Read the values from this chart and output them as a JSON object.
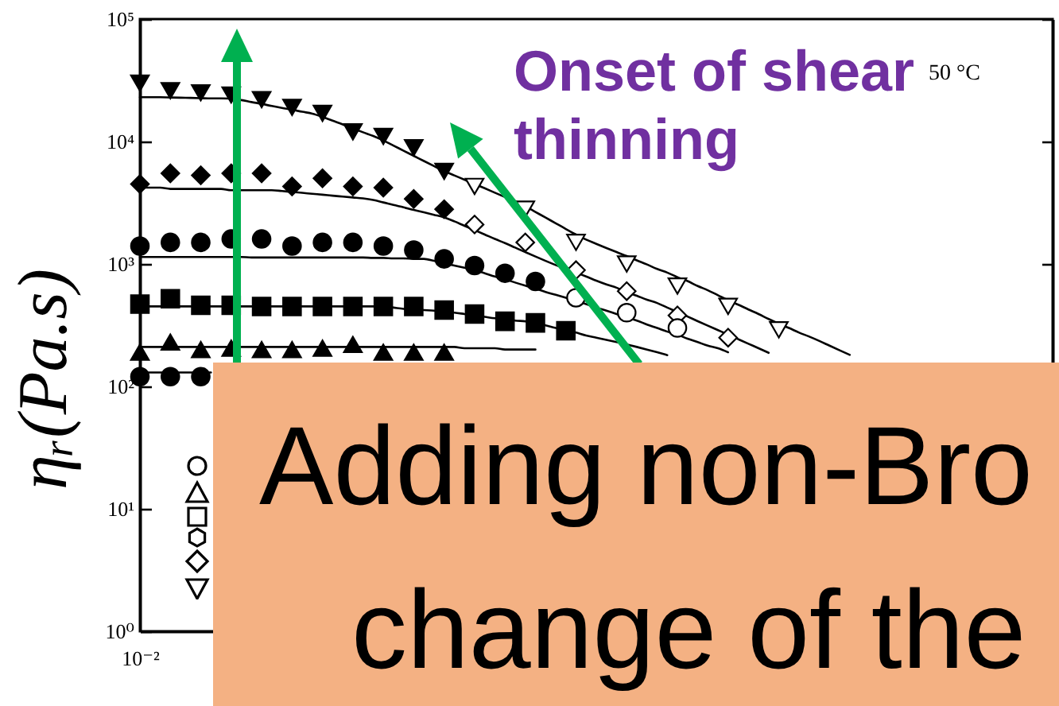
{
  "chart_data": {
    "type": "scatter",
    "ylabel": "ηᵣ(Pa.s)",
    "annotations": [
      "Onset of shear thinning",
      "50 °C",
      "Adding non-Bro",
      "change of the"
    ],
    "categories": [
      "10⁻²",
      null,
      null,
      null,
      null,
      null,
      null,
      null,
      null,
      null,
      null,
      null,
      null,
      null,
      null,
      null,
      null,
      null,
      null,
      null,
      null,
      null,
      null,
      null,
      null,
      null,
      null,
      null,
      null,
      null,
      null,
      null,
      null,
      null,
      null,
      null,
      null,
      null,
      null,
      null,
      null,
      null,
      null,
      null,
      null,
      null,
      null,
      null,
      null,
      null,
      null,
      null,
      null,
      null,
      null,
      null,
      null,
      null,
      null,
      null,
      null,
      null,
      null,
      null,
      null,
      null,
      null,
      null,
      null,
      null,
      null,
      null,
      null,
      null,
      null,
      null,
      null,
      null,
      null,
      null,
      null,
      null,
      null,
      null,
      null,
      null,
      null,
      null,
      null,
      null,
      null
    ],
    "log": "y",
    "ylim": [
      1,
      100000
    ],
    "yticks": [
      {
        "value": 1,
        "label": "10⁰"
      },
      {
        "value": 10,
        "label": "10¹"
      },
      {
        "value": 100,
        "label": "10²"
      },
      {
        "value": 1000,
        "label": "10³"
      },
      {
        "value": 10000,
        "label": "10⁴"
      },
      {
        "value": 100000,
        "label": "10⁵"
      }
    ],
    "line_style": "solid",
    "series": [
      {
        "type": "line",
        "color": "#000000",
        "values": [
          23000,
          23000,
          23000,
          22900,
          22800,
          22700,
          22600,
          22500,
          22500,
          22400,
          21800,
          21000,
          20300,
          19500,
          18800,
          18200,
          17500,
          16900,
          15900,
          14800,
          13800,
          12800,
          11900,
          11100,
          10200,
          9270,
          8410,
          7640,
          6930,
          6300,
          5740,
          5290,
          4880,
          4500,
          4150,
          3820,
          3520,
          3250,
          2960,
          2660,
          2390,
          2150,
          1930,
          1740,
          1580,
          1460,
          1350,
          1250,
          1160,
          1070,
          990,
          910,
          850,
          780,
          725,
          660,
          610,
          555,
          505,
          465,
          425,
          390,
          355,
          325,
          300,
          275,
          255,
          235,
          215,
          197,
          181,
          null,
          null,
          null,
          null,
          null,
          null,
          null,
          null,
          null,
          null,
          null,
          null,
          null,
          null,
          null,
          null,
          null,
          null,
          null,
          null
        ]
      },
      {
        "type": "line",
        "color": "#000000",
        "values": [
          4200,
          4200,
          4200,
          4100,
          4100,
          4100,
          4100,
          4100,
          4100,
          4000,
          4000,
          4000,
          4000,
          4000,
          3940,
          3870,
          3810,
          3740,
          3680,
          3610,
          3550,
          3490,
          3430,
          3330,
          3180,
          3030,
          2900,
          2760,
          2640,
          2520,
          2400,
          2230,
          2050,
          1890,
          1740,
          1600,
          1480,
          1360,
          1250,
          1150,
          1060,
          980,
          910,
          850,
          790,
          730,
          680,
          640,
          590,
          550,
          510,
          480,
          440,
          405,
          372,
          341,
          313,
          288,
          265,
          243,
          223,
          205,
          188,
          null,
          null,
          null,
          null,
          null,
          null,
          null,
          null,
          null,
          null,
          null,
          null,
          null,
          null,
          null,
          null,
          null,
          null,
          null,
          null,
          null,
          null,
          null,
          null,
          null,
          null,
          null,
          null
        ]
      },
      {
        "type": "line",
        "color": "#000000",
        "values": [
          1140,
          1140,
          1140,
          1140,
          1140,
          1140,
          1140,
          1140,
          1140,
          1140,
          1140,
          1130,
          1130,
          1130,
          1130,
          1130,
          1130,
          1130,
          1130,
          1130,
          1130,
          1130,
          1130,
          1120,
          1120,
          1110,
          1110,
          1100,
          1100,
          1060,
          1010,
          970,
          930,
          890,
          840,
          790,
          750,
          705,
          665,
          630,
          590,
          560,
          530,
          500,
          470,
          440,
          415,
          390,
          365,
          345,
          320,
          300,
          280,
          265,
          245,
          230,
          215,
          205,
          190,
          null,
          null,
          null,
          null,
          null,
          null,
          null,
          null,
          null,
          null,
          null,
          null,
          null,
          null,
          null,
          null,
          null,
          null,
          null,
          null,
          null,
          null,
          null,
          null,
          null,
          null,
          null,
          null,
          null,
          null,
          null,
          null
        ]
      },
      {
        "type": "line",
        "color": "#000000",
        "values": [
          450,
          450,
          450,
          450,
          450,
          450,
          450,
          450,
          450,
          450,
          450,
          450,
          450,
          450,
          450,
          450,
          450,
          450,
          450,
          450,
          450,
          450,
          450,
          450,
          450,
          440,
          430,
          425,
          420,
          415,
          405,
          400,
          390,
          380,
          370,
          360,
          355,
          345,
          340,
          330,
          315,
          300,
          290,
          275,
          260,
          250,
          240,
          230,
          220,
          210,
          200,
          190,
          180,
          null,
          null,
          null,
          null,
          null,
          null,
          null,
          null,
          null,
          null,
          null,
          null,
          null,
          null,
          null,
          null,
          null,
          null,
          null,
          null,
          null,
          null,
          null,
          null,
          null,
          null,
          null,
          null,
          null,
          null,
          null,
          null,
          null,
          null,
          null,
          null,
          null,
          null
        ]
      },
      {
        "type": "line",
        "color": "#000000",
        "values": [
          210,
          210,
          210,
          210,
          210,
          210,
          210,
          210,
          210,
          210,
          210,
          210,
          210,
          210,
          210,
          210,
          210,
          210,
          210,
          210,
          210,
          210,
          210,
          210,
          210,
          210,
          210,
          210,
          210,
          210,
          210,
          210,
          205,
          205,
          205,
          205,
          200,
          200,
          200,
          200,
          null,
          null,
          null,
          null,
          null,
          null,
          null,
          null,
          null,
          null,
          null,
          null,
          null,
          null,
          null,
          null,
          null,
          null,
          null,
          null,
          null,
          null,
          null,
          null,
          null,
          null,
          null,
          null,
          null,
          null,
          null,
          null,
          null,
          null,
          null,
          null,
          null,
          null,
          null,
          null,
          null,
          null,
          null,
          null,
          null,
          null,
          null,
          null,
          null,
          null,
          null
        ]
      },
      {
        "type": "line",
        "color": "#000000",
        "values": [
          130,
          130,
          130,
          130,
          130,
          130,
          130,
          130,
          null,
          null,
          null,
          null,
          null,
          null,
          null,
          null,
          null,
          null,
          null,
          null,
          null,
          null,
          null,
          null,
          null,
          null,
          null,
          null,
          null,
          null,
          null,
          null,
          null,
          null,
          null,
          null,
          null,
          null,
          null,
          null,
          null,
          null,
          null,
          null,
          null,
          null,
          null,
          null,
          null,
          null,
          null,
          null,
          null,
          null,
          null,
          null,
          null,
          null,
          null,
          null,
          null,
          null,
          null,
          null,
          null,
          null,
          null,
          null,
          null,
          null,
          null,
          null,
          null,
          null,
          null,
          null,
          null,
          null,
          null,
          null,
          null,
          null,
          null,
          null,
          null,
          null,
          null,
          null,
          null,
          null,
          null
        ]
      },
      {
        "marker": "triangle-down",
        "color": "#000000",
        "values": [
          30000,
          null,
          null,
          26000,
          null,
          null,
          25000,
          null,
          null,
          24000,
          null,
          null,
          22000,
          null,
          null,
          19000,
          null,
          null,
          17000,
          null,
          null,
          12000,
          null,
          null,
          11000,
          null,
          null,
          8900,
          null,
          null,
          5700,
          null,
          null,
          null,
          null,
          null,
          null,
          null,
          null,
          null,
          null,
          null,
          null,
          null,
          null,
          null,
          null,
          null,
          null,
          null,
          null,
          null,
          null,
          null,
          null,
          null,
          null,
          null,
          null,
          null,
          null,
          null,
          null,
          null,
          null,
          null,
          null,
          null,
          null,
          null,
          null,
          null,
          null,
          null,
          null,
          null,
          null,
          null,
          null,
          null,
          null,
          null,
          null,
          null,
          null,
          null,
          null,
          null,
          null,
          null,
          null
        ]
      },
      {
        "marker": "diamond",
        "color": "#000000",
        "values": [
          4500,
          null,
          null,
          5500,
          null,
          null,
          5300,
          null,
          null,
          5500,
          null,
          null,
          5500,
          null,
          null,
          4300,
          null,
          null,
          5000,
          null,
          null,
          4300,
          null,
          null,
          4200,
          null,
          null,
          3400,
          null,
          null,
          2800,
          null,
          null,
          null,
          null,
          null,
          null,
          null,
          null,
          null,
          null,
          null,
          null,
          null,
          null,
          null,
          null,
          null,
          null,
          null,
          null,
          null,
          null,
          null,
          null,
          null,
          null,
          null,
          null,
          null,
          null,
          null,
          null,
          null,
          null,
          null,
          null,
          null,
          null,
          null,
          null,
          null,
          null,
          null,
          null,
          null,
          null,
          null,
          null,
          null,
          null,
          null,
          null,
          null,
          null,
          null,
          null,
          null,
          null,
          null,
          null
        ]
      },
      {
        "marker": "circle",
        "color": "#000000",
        "values": [
          1400,
          null,
          null,
          1500,
          null,
          null,
          1500,
          null,
          null,
          1600,
          null,
          null,
          1600,
          null,
          null,
          1400,
          null,
          null,
          1500,
          null,
          null,
          1500,
          null,
          null,
          1400,
          null,
          null,
          1300,
          null,
          null,
          1100,
          null,
          null,
          970,
          null,
          null,
          840,
          null,
          null,
          720,
          null,
          null,
          null,
          null,
          null,
          null,
          null,
          null,
          null,
          null,
          null,
          null,
          null,
          null,
          null,
          null,
          null,
          null,
          null,
          null,
          null,
          null,
          null,
          null,
          null,
          null,
          null,
          null,
          null,
          null,
          null,
          null,
          null,
          null,
          null,
          null,
          null,
          null,
          null,
          null,
          null,
          null,
          null,
          null,
          null,
          null,
          null,
          null,
          null,
          null,
          null
        ]
      },
      {
        "marker": "square",
        "color": "#000000",
        "values": [
          470,
          null,
          null,
          520,
          null,
          null,
          460,
          null,
          null,
          460,
          null,
          null,
          450,
          null,
          null,
          450,
          null,
          null,
          450,
          null,
          null,
          450,
          null,
          null,
          450,
          null,
          null,
          450,
          null,
          null,
          420,
          null,
          null,
          390,
          null,
          null,
          340,
          null,
          null,
          330,
          null,
          null,
          285,
          null,
          null,
          null,
          null,
          null,
          null,
          null,
          null,
          null,
          null,
          null,
          null,
          null,
          null,
          null,
          null,
          null,
          null,
          null,
          null,
          null,
          null,
          null,
          null,
          null,
          null,
          null,
          null,
          null,
          null,
          null,
          null,
          null,
          null,
          null,
          null,
          null,
          null,
          null,
          null,
          null,
          null,
          null,
          null,
          null,
          null,
          null,
          null
        ]
      },
      {
        "marker": "triangle",
        "color": "#000000",
        "values": [
          190,
          null,
          null,
          230,
          null,
          null,
          200,
          null,
          null,
          205,
          null,
          null,
          200,
          null,
          null,
          200,
          null,
          null,
          205,
          null,
          null,
          220,
          null,
          null,
          190,
          null,
          null,
          190,
          null,
          null,
          190,
          null,
          null,
          null,
          null,
          null,
          null,
          null,
          null,
          null,
          null,
          null,
          null,
          null,
          null,
          null,
          null,
          null,
          null,
          null,
          null,
          null,
          null,
          null,
          null,
          null,
          null,
          null,
          null,
          null,
          null,
          null,
          null,
          null,
          null,
          null,
          null,
          null,
          null,
          null,
          null,
          null,
          null,
          null,
          null,
          null,
          null,
          null,
          null,
          null,
          null,
          null,
          null,
          null,
          null,
          null,
          null,
          null,
          null,
          null,
          null
        ]
      },
      {
        "marker": "circle",
        "color": "#000000",
        "values": [
          120,
          null,
          null,
          120,
          null,
          null,
          120,
          null,
          null,
          null,
          null,
          null,
          null,
          null,
          null,
          null,
          null,
          null,
          null,
          null,
          null,
          null,
          null,
          null,
          null,
          null,
          null,
          null,
          null,
          null,
          null,
          null,
          null,
          null,
          null,
          null,
          null,
          null,
          null,
          null,
          null,
          null,
          null,
          null,
          null,
          null,
          null,
          null,
          null,
          null,
          null,
          null,
          null,
          null,
          null,
          null,
          null,
          null,
          null,
          null,
          null,
          null,
          null,
          null,
          null,
          null,
          null,
          null,
          null,
          null,
          null,
          null,
          null,
          null,
          null,
          null,
          null,
          null,
          null,
          null,
          null,
          null,
          null,
          null,
          null,
          null,
          null,
          null,
          null,
          null,
          null
        ]
      },
      {
        "marker": "triangle-down",
        "color": "#ffffff",
        "values": [
          null,
          null,
          null,
          null,
          null,
          null,
          null,
          null,
          null,
          null,
          null,
          null,
          null,
          null,
          null,
          null,
          null,
          null,
          null,
          null,
          null,
          null,
          null,
          null,
          null,
          null,
          null,
          null,
          null,
          null,
          null,
          null,
          null,
          4300,
          null,
          null,
          null,
          null,
          2800,
          null,
          null,
          null,
          null,
          1500,
          null,
          null,
          null,
          null,
          1000,
          null,
          null,
          null,
          null,
          660,
          null,
          null,
          null,
          null,
          450,
          null,
          null,
          null,
          null,
          290,
          null,
          null,
          null,
          null,
          null,
          null,
          null,
          null,
          null,
          null,
          null,
          null,
          null,
          null,
          null,
          null,
          null,
          null,
          null,
          null,
          null,
          null,
          null,
          null,
          null,
          null,
          null
        ]
      },
      {
        "marker": "diamond",
        "color": "#ffffff",
        "values": [
          null,
          null,
          null,
          null,
          null,
          null,
          null,
          null,
          null,
          null,
          null,
          null,
          null,
          null,
          null,
          null,
          null,
          null,
          null,
          null,
          null,
          null,
          null,
          null,
          null,
          null,
          null,
          null,
          null,
          null,
          null,
          null,
          null,
          2100,
          null,
          null,
          null,
          null,
          1500,
          null,
          null,
          null,
          null,
          890,
          null,
          null,
          null,
          null,
          600,
          null,
          null,
          null,
          null,
          380,
          null,
          null,
          null,
          null,
          250,
          null,
          null,
          null,
          null,
          null,
          null,
          null,
          null,
          null,
          null,
          null,
          null,
          null,
          null,
          null,
          null,
          null,
          null,
          null,
          null,
          null,
          null,
          null,
          null,
          null,
          null,
          null,
          null,
          null,
          null,
          null,
          null
        ]
      },
      {
        "marker": "circle",
        "color": "#ffffff",
        "values": [
          null,
          null,
          null,
          null,
          null,
          null,
          null,
          null,
          null,
          null,
          null,
          null,
          null,
          null,
          null,
          null,
          null,
          null,
          null,
          null,
          null,
          null,
          null,
          null,
          null,
          null,
          null,
          null,
          null,
          null,
          null,
          null,
          null,
          null,
          null,
          null,
          null,
          null,
          null,
          null,
          null,
          null,
          null,
          530,
          null,
          null,
          null,
          null,
          400,
          null,
          null,
          null,
          null,
          300,
          null,
          null,
          null,
          null,
          null,
          null,
          null,
          null,
          null,
          null,
          null,
          null,
          null,
          null,
          null,
          null,
          null,
          null,
          null,
          null,
          null,
          null,
          null,
          null,
          null,
          null,
          null,
          null,
          null,
          null,
          null,
          null,
          null,
          null,
          null,
          null,
          null
        ]
      }
    ]
  }
}
